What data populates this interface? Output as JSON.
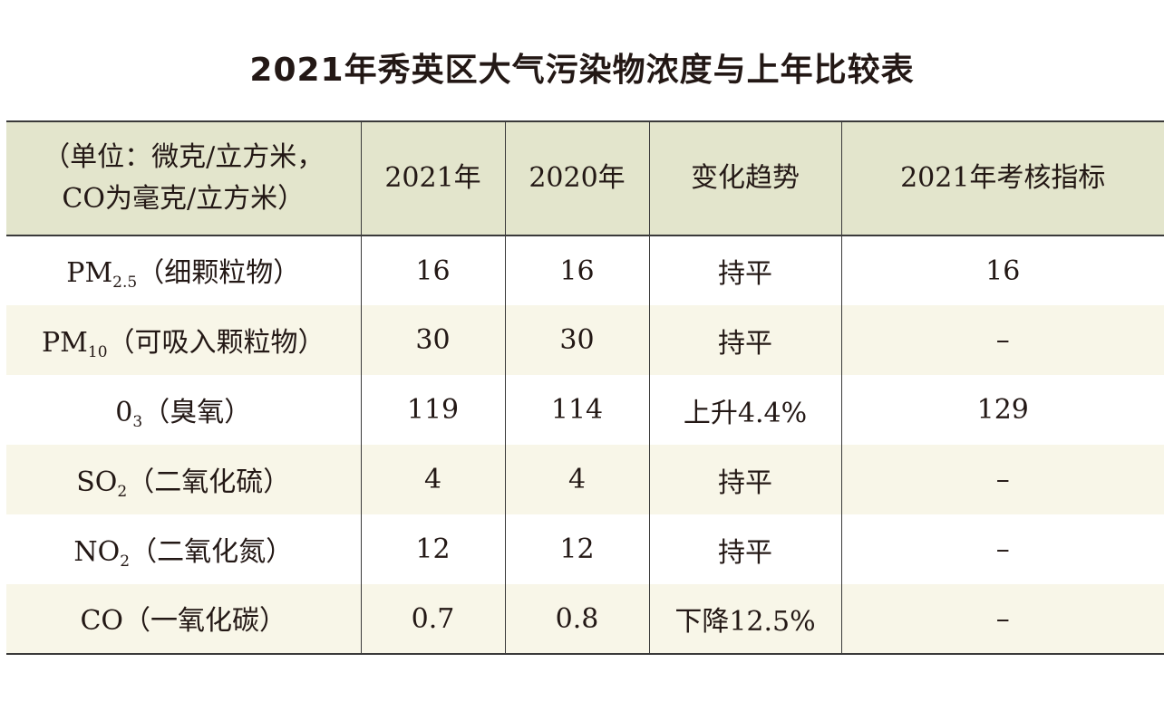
{
  "title": "2021年秀英区大气污染物浓度与上年比较表",
  "colors": {
    "header_bg": "#e3e5cc",
    "stripe_bg": "#f8f6e8",
    "text": "#231815"
  },
  "table": {
    "headers": [
      "（单位：微克/立方米，",
      "CO为毫克/立方米）",
      "2021年",
      "2020年",
      "变化趋势",
      "2021年考核指标"
    ],
    "rows": [
      {
        "name": "PM",
        "sub": "2.5",
        "desc": "（细颗粒物）",
        "y2021": "16",
        "y2020": "16",
        "trend": "持平",
        "target": "16"
      },
      {
        "name": "PM",
        "sub": "10",
        "desc": "（可吸入颗粒物）",
        "y2021": "30",
        "y2020": "30",
        "trend": "持平",
        "target": "–"
      },
      {
        "name": "0",
        "sub": "3",
        "desc": "（臭氧）",
        "y2021": "119",
        "y2020": "114",
        "trend": "上升4.4%",
        "target": "129"
      },
      {
        "name": "SO",
        "sub": "2",
        "desc": "（二氧化硫）",
        "y2021": "4",
        "y2020": "4",
        "trend": "持平",
        "target": "–"
      },
      {
        "name": "NO",
        "sub": "2",
        "desc": "（二氧化氮）",
        "y2021": "12",
        "y2020": "12",
        "trend": "持平",
        "target": "–"
      },
      {
        "name": "CO",
        "sub": "",
        "desc": "（一氧化碳）",
        "y2021": "0.7",
        "y2020": "0.8",
        "trend": "下降12.5%",
        "target": "–"
      }
    ]
  }
}
